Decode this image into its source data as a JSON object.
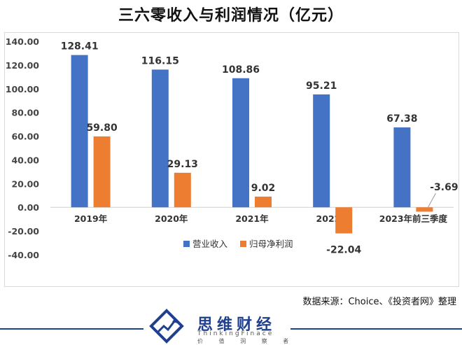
{
  "title": "三六零收入与利润情况（亿元）",
  "source_note": "数据来源：Choice、《投资者网》整理",
  "logo": {
    "name": "思维财经",
    "english": "ThinkingFinace",
    "tagline": "价 值 洞 察 者"
  },
  "colors": {
    "revenue": "#4472C4",
    "profit": "#ED7D31",
    "brand": "#1f3f8f"
  },
  "chart_data": {
    "type": "bar",
    "categories": [
      "2019年",
      "2020年",
      "2021年",
      "2022年",
      "2023年前三季度"
    ],
    "series": [
      {
        "name": "营业收入",
        "values": [
          128.41,
          116.15,
          108.86,
          95.21,
          67.38
        ],
        "labels": [
          "128.41",
          "116.15",
          "108.86",
          "95.21",
          "67.38"
        ]
      },
      {
        "name": "归母净利润",
        "values": [
          59.8,
          29.13,
          9.02,
          -22.04,
          -3.69
        ],
        "labels": [
          "59.80",
          "29.13",
          "9.02",
          "-22.04",
          "-3.69"
        ]
      }
    ],
    "ylim": [
      -40,
      140
    ],
    "yticks": [
      -40,
      -20,
      0,
      20,
      40,
      60,
      80,
      100,
      120,
      140
    ],
    "ytick_labels": [
      "-40.00",
      "-20.00",
      "0.00",
      "20.00",
      "40.00",
      "60.00",
      "80.00",
      "100.00",
      "120.00",
      "140.00"
    ],
    "grid": false,
    "legend": "bottom",
    "xlabel": "",
    "ylabel": ""
  }
}
